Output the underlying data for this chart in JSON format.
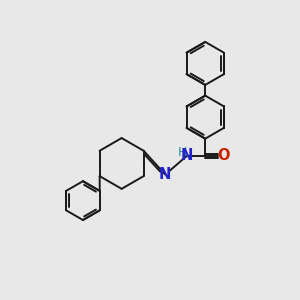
{
  "bg_color": "#e8e8e8",
  "bond_color": "#1a1a1a",
  "bond_width": 1.4,
  "N_color": "#2222cc",
  "O_color": "#cc2200",
  "H_color": "#2a9090",
  "font_size": 9.5,
  "figsize": [
    3.0,
    3.0
  ],
  "dpi": 100,
  "xlim": [
    0,
    10
  ],
  "ylim": [
    0,
    10
  ]
}
